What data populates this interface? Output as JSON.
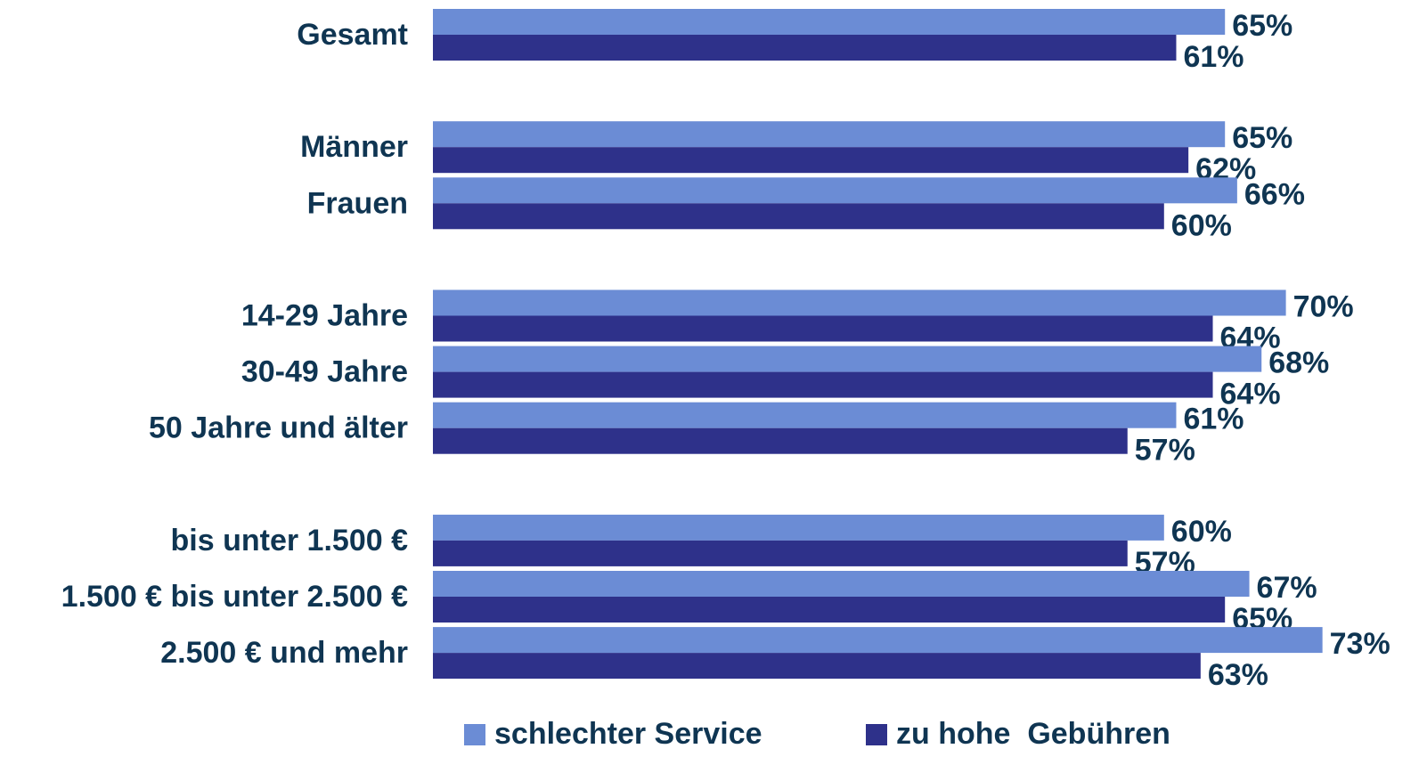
{
  "chart_data": {
    "type": "bar",
    "orientation": "horizontal",
    "categories": [
      "Gesamt",
      null,
      "Männer",
      "Frauen",
      null,
      "14-29 Jahre",
      "30-49 Jahre",
      "50 Jahre und älter",
      null,
      "bis unter 1.500 €",
      "1.500 € bis unter 2.500 €",
      "2.500 € und mehr"
    ],
    "series": [
      {
        "name": "schlechter Service",
        "color": "#6b8cd5",
        "values": [
          65,
          null,
          65,
          66,
          null,
          70,
          68,
          61,
          null,
          60,
          67,
          73
        ],
        "value_labels": [
          "65%",
          null,
          "65%",
          "66%",
          null,
          "70%",
          "68%",
          "61%",
          null,
          "60%",
          "67%",
          "73%"
        ]
      },
      {
        "name": "zu hohe  Gebühren",
        "color": "#2e318a",
        "values": [
          61,
          null,
          62,
          60,
          null,
          64,
          64,
          57,
          null,
          57,
          65,
          63
        ],
        "value_labels": [
          "61%",
          null,
          "62%",
          "60%",
          null,
          "64%",
          "64%",
          "57%",
          null,
          "57%",
          "65%",
          "63%"
        ]
      }
    ],
    "legend": "bottom"
  }
}
